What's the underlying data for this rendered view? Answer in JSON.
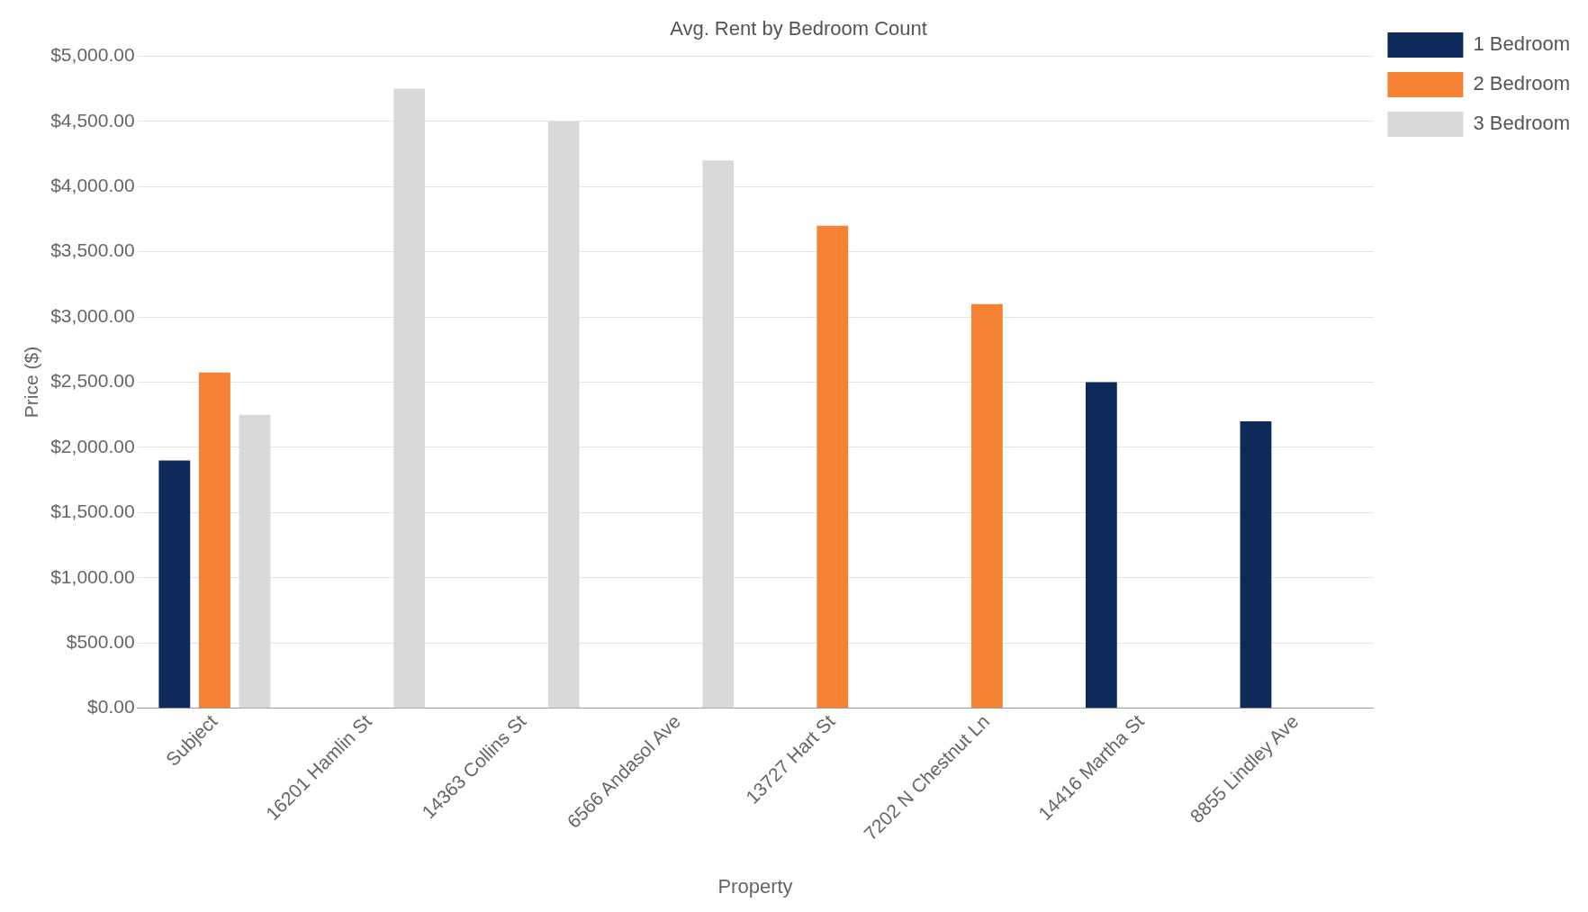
{
  "chart_data": {
    "type": "bar",
    "title": "Avg. Rent by Bedroom Count",
    "xlabel": "Property",
    "ylabel": "Price ($)",
    "categories": [
      "Subject",
      "16201 Hamlin St",
      "14363 Collins St",
      "6566 Andasol Ave",
      "13727 Hart St",
      "7202 N Chestnut Ln",
      "14416 Martha St",
      "8855 Lindley Ave"
    ],
    "series": [
      {
        "name": "1 Bedroom",
        "color": "#0e2a5a",
        "values": [
          1900,
          null,
          null,
          null,
          null,
          null,
          2500,
          2200
        ]
      },
      {
        "name": "2 Bedroom",
        "color": "#f58233",
        "values": [
          2575,
          null,
          null,
          null,
          3700,
          3100,
          null,
          null
        ]
      },
      {
        "name": "3 Bedroom",
        "color": "#d9d9d9",
        "values": [
          2250,
          4750,
          4500,
          4200,
          null,
          null,
          null,
          null
        ]
      }
    ],
    "ylim": [
      0,
      5000
    ],
    "yticks": [
      {
        "value": 0,
        "label": "$0.00"
      },
      {
        "value": 500,
        "label": "$500.00"
      },
      {
        "value": 1000,
        "label": "$1,000.00"
      },
      {
        "value": 1500,
        "label": "$1,500.00"
      },
      {
        "value": 2000,
        "label": "$2,000.00"
      },
      {
        "value": 2500,
        "label": "$2,500.00"
      },
      {
        "value": 3000,
        "label": "$3,000.00"
      },
      {
        "value": 3500,
        "label": "$3,500.00"
      },
      {
        "value": 4000,
        "label": "$4,000.00"
      },
      {
        "value": 4500,
        "label": "$4,500.00"
      },
      {
        "value": 5000,
        "label": "$5,000.00"
      }
    ],
    "grid": "y",
    "legend": "top right"
  }
}
